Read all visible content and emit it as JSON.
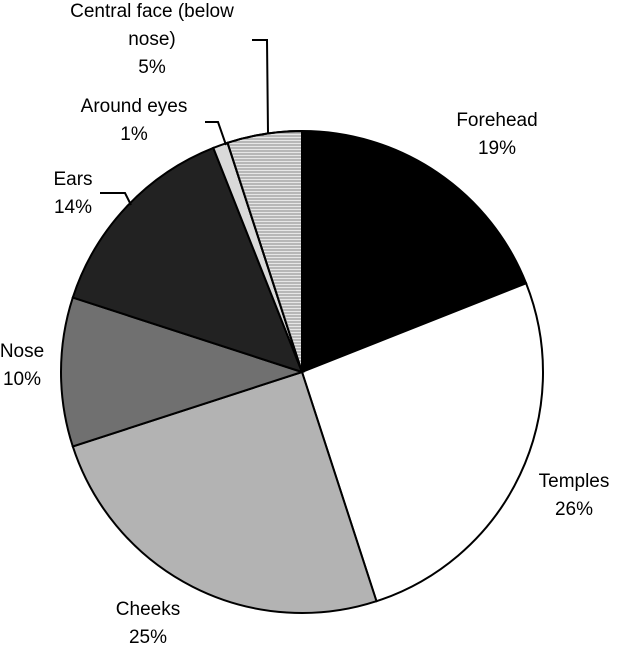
{
  "chart_data": {
    "type": "pie",
    "categories": [
      "Forehead",
      "Temples",
      "Cheeks",
      "Nose",
      "Ears",
      "Around eyes",
      "Central face (below nose)"
    ],
    "values": [
      19,
      26,
      25,
      10,
      14,
      1,
      5
    ],
    "value_labels": [
      "19%",
      "26%",
      "25%",
      "10%",
      "14%",
      "1%",
      "5%"
    ],
    "colors": [
      "#000000",
      "#ffffff",
      "#b3b3b3",
      "#707070",
      "#222222",
      "#d9d9d9",
      "#e6e6e6"
    ]
  }
}
